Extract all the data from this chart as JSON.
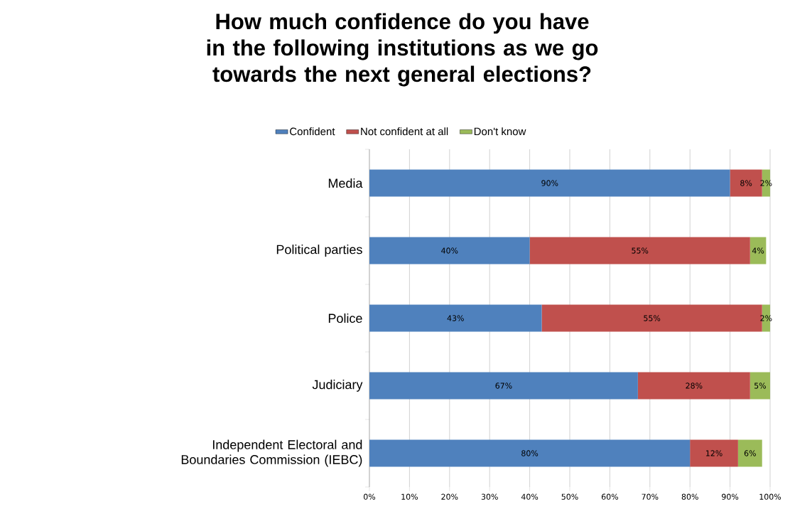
{
  "chart_data": {
    "type": "bar",
    "orientation": "horizontal",
    "stacked": true,
    "title": "How much confidence do you have in the following institutions as we go towards the next general elections?",
    "categories": [
      "Media",
      "Political parties",
      "Police",
      "Judiciary",
      "Independent Electoral and Boundaries Commission (IEBC)"
    ],
    "series": [
      {
        "name": "Confident",
        "color": "#4f81bd",
        "values": [
          90,
          40,
          43,
          67,
          80
        ],
        "value_labels": [
          "90%",
          "40%",
          "43%",
          "67%",
          "80%"
        ]
      },
      {
        "name": "Not confident at all",
        "color": "#c0504d",
        "values": [
          8,
          55,
          55,
          28,
          12
        ],
        "value_labels": [
          "8%",
          "55%",
          "55%",
          "28%",
          "12%"
        ]
      },
      {
        "name": "Don't know",
        "color": "#9bbb59",
        "values": [
          2,
          4,
          2,
          5,
          6
        ],
        "value_labels": [
          "2%",
          "4%",
          "2%",
          "5%",
          "6%"
        ]
      }
    ],
    "xlim": [
      0,
      100
    ],
    "xticks": [
      {
        "value": 0,
        "label": "0%"
      },
      {
        "value": 10,
        "label": "10%"
      },
      {
        "value": 20,
        "label": "20%"
      },
      {
        "value": 30,
        "label": "30%"
      },
      {
        "value": 40,
        "label": "40%"
      },
      {
        "value": 50,
        "label": "50%"
      },
      {
        "value": 60,
        "label": "60%"
      },
      {
        "value": 70,
        "label": "70%"
      },
      {
        "value": 80,
        "label": "80%"
      },
      {
        "value": 90,
        "label": "90%"
      },
      {
        "value": 100,
        "label": "100%"
      }
    ],
    "grid": "x",
    "legend": "top"
  }
}
